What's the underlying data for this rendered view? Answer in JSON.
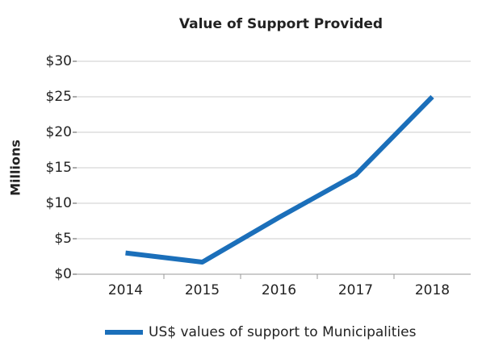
{
  "chart_data": {
    "type": "line",
    "title": "Value of Support Provided",
    "y_label": "Millions",
    "categories": [
      "2014",
      "2015",
      "2016",
      "2017",
      "2018"
    ],
    "series": [
      {
        "name": "US$ values of support to Municipalities",
        "color": "#1b6fba",
        "values": [
          3,
          1.7,
          8,
          14,
          25
        ]
      }
    ],
    "ylim": [
      0,
      30
    ],
    "yticks": [
      {
        "value": 0,
        "label": "$0"
      },
      {
        "value": 5,
        "label": "$5"
      },
      {
        "value": 10,
        "label": "$10"
      },
      {
        "value": 15,
        "label": "$15"
      },
      {
        "value": 20,
        "label": "$20"
      },
      {
        "value": 25,
        "label": "$25"
      },
      {
        "value": 30,
        "label": "$30"
      }
    ],
    "grid": true,
    "legend": "bottom"
  }
}
